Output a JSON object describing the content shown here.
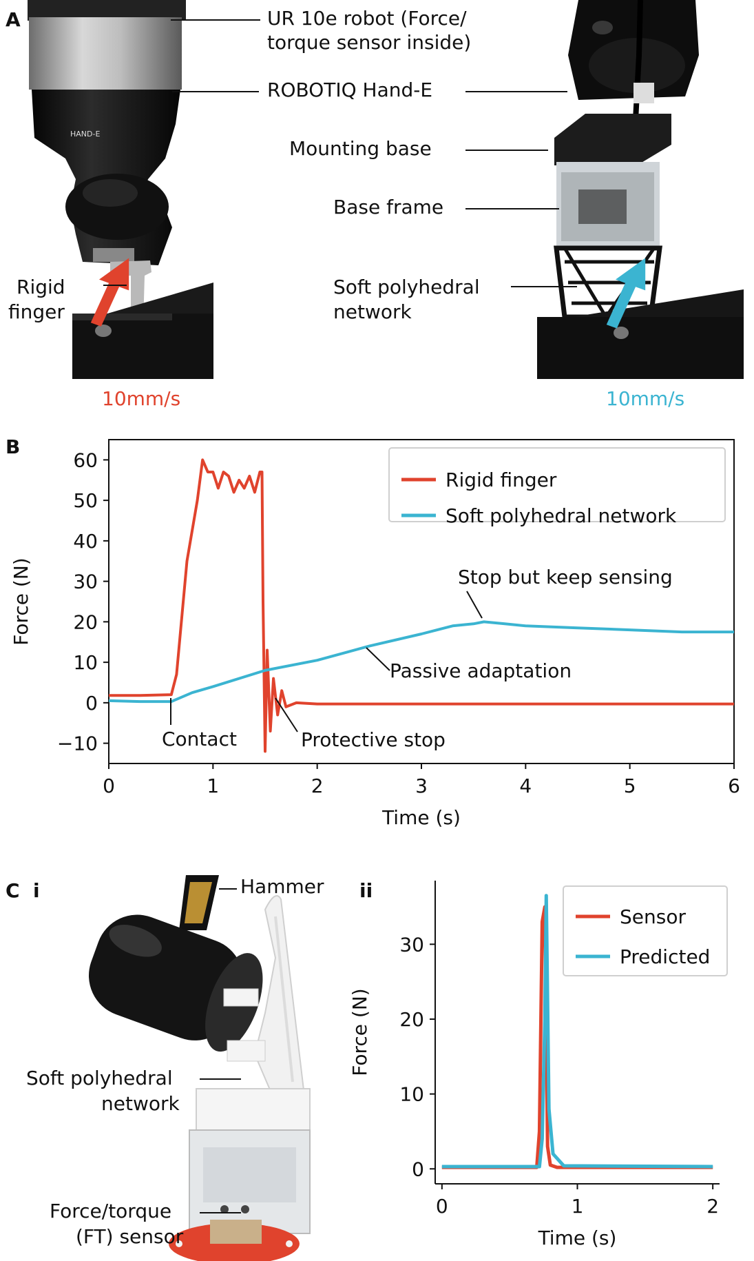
{
  "panel_a": {
    "letter": "A",
    "labels": {
      "ur10e_line1": "UR 10e robot (Force/",
      "ur10e_line2": "torque sensor inside)",
      "robotiq": "ROBOTIQ Hand-E",
      "mounting_base": "Mounting base",
      "base_frame": "Base frame",
      "soft_line1": "Soft polyhedral",
      "soft_line2": "network",
      "rigid_line1": "Rigid",
      "rigid_line2": "finger",
      "speed_left": "10mm/s",
      "speed_right": "10mm/s"
    },
    "colors": {
      "rigid": "#e0432d",
      "soft": "#3bb4d1"
    }
  },
  "panel_b": {
    "letter": "B",
    "annotations": {
      "contact": "Contact",
      "protective_stop": "Protective stop",
      "passive_adaptation": "Passive adaptation",
      "stop_keep_sensing": "Stop but keep sensing"
    }
  },
  "panel_c": {
    "letter": "C",
    "sub_i": "i",
    "sub_ii": "ii",
    "labels": {
      "hammer": "Hammer",
      "soft_line1": "Soft polyhedral",
      "soft_line2": "network",
      "ft_line1": "Force/torque",
      "ft_line2": "(FT) sensor"
    }
  },
  "chart_data": [
    {
      "type": "line",
      "xlabel": "Time (s)",
      "ylabel": "Force (N)",
      "xlim": [
        0,
        6
      ],
      "ylim": [
        -15,
        65
      ],
      "xticks": [
        0,
        1,
        2,
        3,
        4,
        5,
        6
      ],
      "yticks": [
        -10,
        0,
        10,
        20,
        30,
        40,
        50,
        60
      ],
      "ytick_labels": [
        "−10",
        "0",
        "10",
        "20",
        "30",
        "40",
        "50",
        "60"
      ],
      "legend_position": "top-right",
      "grid": false,
      "series": [
        {
          "name": "Rigid finger",
          "color": "#e0432d",
          "x": [
            0,
            0.3,
            0.6,
            0.65,
            0.75,
            0.85,
            0.9,
            0.95,
            1.0,
            1.05,
            1.1,
            1.15,
            1.2,
            1.25,
            1.3,
            1.35,
            1.4,
            1.45,
            1.47,
            1.48,
            1.5,
            1.52,
            1.55,
            1.58,
            1.62,
            1.66,
            1.7,
            1.8,
            2,
            3,
            4,
            5,
            6
          ],
          "y": [
            1.8,
            1.8,
            2,
            7,
            35,
            50,
            60,
            57,
            57,
            53,
            57,
            56,
            52,
            55,
            53,
            56,
            52,
            57,
            57,
            25,
            -12,
            13,
            -7,
            6,
            -3,
            3,
            -1,
            0,
            -0.3,
            -0.3,
            -0.3,
            -0.3,
            -0.3
          ]
        },
        {
          "name": "Soft polyhedral network",
          "color": "#3bb4d1",
          "x": [
            0,
            0.3,
            0.6,
            0.8,
            1.0,
            1.5,
            2.0,
            2.5,
            3.0,
            3.3,
            3.5,
            3.6,
            3.8,
            4.0,
            4.5,
            5.0,
            5.5,
            6.0
          ],
          "y": [
            0.5,
            0.3,
            0.3,
            2.5,
            4,
            8,
            10.5,
            14,
            17,
            19,
            19.5,
            20,
            19.5,
            19,
            18.5,
            18,
            17.5,
            17.5
          ]
        }
      ]
    },
    {
      "type": "line",
      "xlabel": "Time (s)",
      "ylabel": "Force (N)",
      "xlim": [
        -0.05,
        2.05
      ],
      "ylim": [
        -2,
        38.5
      ],
      "xticks": [
        0,
        1,
        2
      ],
      "yticks": [
        0,
        10,
        20,
        30
      ],
      "legend_position": "top-right",
      "grid": false,
      "series": [
        {
          "name": "Sensor",
          "color": "#e0432d",
          "x": [
            0,
            0.7,
            0.72,
            0.74,
            0.76,
            0.78,
            0.8,
            0.85,
            2
          ],
          "y": [
            0.2,
            0.2,
            5,
            33,
            35,
            3,
            0.5,
            0.2,
            0.2
          ]
        },
        {
          "name": "Predicted",
          "color": "#3bb4d1",
          "x": [
            0,
            0.72,
            0.74,
            0.76,
            0.77,
            0.79,
            0.82,
            0.9,
            2
          ],
          "y": [
            0.3,
            0.3,
            4,
            20,
            36.5,
            8,
            2,
            0.4,
            0.3
          ]
        }
      ]
    }
  ]
}
